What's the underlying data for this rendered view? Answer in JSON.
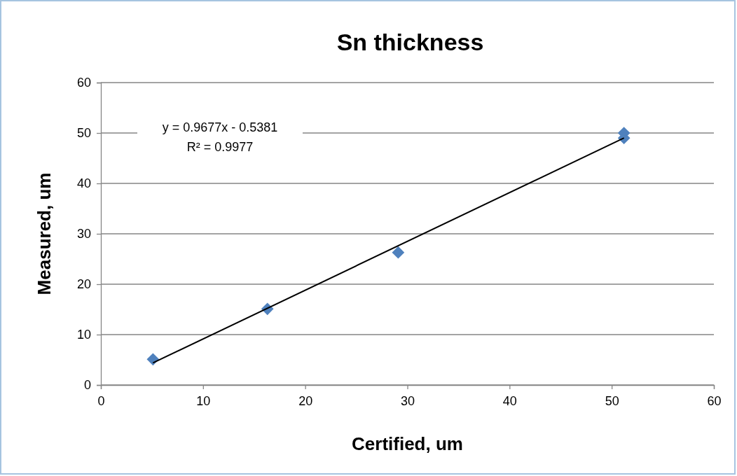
{
  "chart_data": {
    "type": "scatter",
    "title": "Sn thickness",
    "xlabel": "Certified, um",
    "ylabel": "Measured, um",
    "xlim": [
      0,
      60
    ],
    "xticks": [
      0,
      10,
      20,
      30,
      40,
      50,
      60
    ],
    "ylim": [
      0,
      60
    ],
    "yticks": [
      0,
      10,
      20,
      30,
      40,
      50,
      60
    ],
    "grid": "y",
    "marker": "diamond",
    "annotations": [
      "y = 0.9677x - 0.5381",
      "R² = 0.9977"
    ],
    "series": [
      {
        "color": "#4f81bd",
        "x": [
          5.1,
          16.3,
          29.1,
          51.2,
          51.2
        ],
        "values": [
          5.1,
          15.1,
          26.3,
          50.0,
          49.0
        ]
      },
      {
        "type": "line",
        "color": "#000000",
        "x": [
          5.1,
          51.2
        ],
        "values": [
          4.4,
          49.0
        ],
        "marker": "none",
        "line_style": "solid"
      }
    ]
  }
}
